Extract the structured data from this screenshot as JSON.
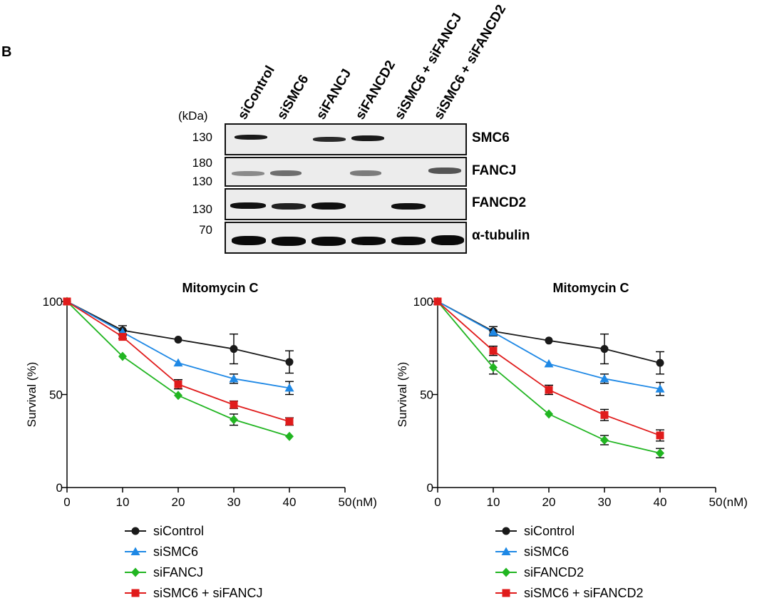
{
  "panel_label": "B",
  "western": {
    "kda_label": "(kDa)",
    "lanes": [
      "siControl",
      "siSMC6",
      "siFANCJ",
      "siFANCD2",
      "siSMC6 + siFANCJ",
      "siSMC6 + siFANCD2"
    ],
    "rows": [
      {
        "protein": "SMC6",
        "markers": [
          "130"
        ]
      },
      {
        "protein": "FANCJ",
        "markers": [
          "180",
          "130"
        ]
      },
      {
        "protein": "FANCD2",
        "markers": [
          "130"
        ]
      },
      {
        "protein": "α-tubulin",
        "markers": [
          "70"
        ]
      }
    ]
  },
  "chart_data": [
    {
      "type": "line",
      "title": "Mitomycin C",
      "xlabel": "(nM)",
      "ylabel": "Survival (%)",
      "x": [
        0,
        10,
        20,
        30,
        40
      ],
      "xticks": [
        "0",
        "10",
        "20",
        "30",
        "40",
        "50"
      ],
      "yticks": [
        "0",
        "50",
        "100"
      ],
      "xlim": [
        0,
        50
      ],
      "ylim": [
        0,
        100
      ],
      "legend_position": "bottom",
      "series": [
        {
          "name": "siControl",
          "color": "#1a1a1a",
          "marker": "circle",
          "values": [
            100,
            84.5,
            79.5,
            74.5,
            67.5
          ],
          "errors": [
            0,
            2.5,
            0,
            8,
            6
          ]
        },
        {
          "name": "siSMC6",
          "color": "#1e88e5",
          "marker": "triangle",
          "values": [
            100,
            83.5,
            67,
            58.5,
            53.5
          ],
          "errors": [
            0,
            1,
            0,
            2.5,
            3.5
          ]
        },
        {
          "name": "siFANCJ",
          "color": "#21b521",
          "marker": "diamond",
          "values": [
            100,
            70.5,
            49.5,
            36.5,
            27.5
          ],
          "errors": [
            0,
            0,
            0,
            3,
            0
          ]
        },
        {
          "name": "siSMC6 + siFANCJ",
          "color": "#e01b1b",
          "marker": "square",
          "values": [
            100,
            81,
            55.5,
            44.5,
            35.5
          ],
          "errors": [
            0,
            1,
            2.5,
            2,
            2
          ]
        }
      ]
    },
    {
      "type": "line",
      "title": "Mitomycin C",
      "xlabel": "(nM)",
      "ylabel": "Survival (%)",
      "x": [
        0,
        10,
        20,
        30,
        40
      ],
      "xticks": [
        "0",
        "10",
        "20",
        "30",
        "40",
        "50"
      ],
      "yticks": [
        "0",
        "50",
        "100"
      ],
      "xlim": [
        0,
        50
      ],
      "ylim": [
        0,
        100
      ],
      "legend_position": "bottom",
      "series": [
        {
          "name": "siControl",
          "color": "#1a1a1a",
          "marker": "circle",
          "values": [
            100,
            84,
            79,
            74.5,
            67
          ],
          "errors": [
            0,
            2.5,
            0,
            8,
            6
          ]
        },
        {
          "name": "siSMC6",
          "color": "#1e88e5",
          "marker": "triangle",
          "values": [
            100,
            83.5,
            66.5,
            58.5,
            53
          ],
          "errors": [
            0,
            1,
            0,
            2.5,
            3.5
          ]
        },
        {
          "name": "siFANCD2",
          "color": "#21b521",
          "marker": "diamond",
          "values": [
            100,
            64.5,
            39.5,
            25.5,
            18.5
          ],
          "errors": [
            0,
            3.5,
            0,
            2.5,
            2.5
          ]
        },
        {
          "name": "siSMC6 + siFANCD2",
          "color": "#e01b1b",
          "marker": "square",
          "values": [
            100,
            73.5,
            52.5,
            39,
            28
          ],
          "errors": [
            0,
            2.5,
            2.5,
            3,
            3
          ]
        }
      ]
    }
  ]
}
